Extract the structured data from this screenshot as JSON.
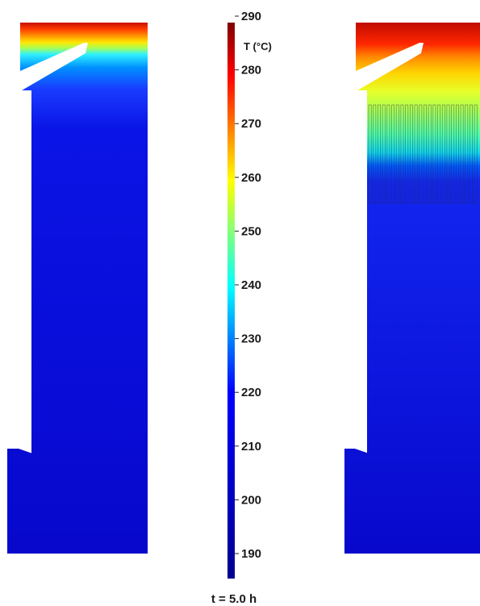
{
  "colorbar": {
    "unit_label": "T (°C)",
    "min": 185,
    "max": 290,
    "ticks": [
      290,
      280,
      270,
      260,
      250,
      240,
      230,
      220,
      210,
      200,
      190
    ],
    "colormap": [
      "#00008f",
      "#0000ff",
      "#00ffff",
      "#ffff00",
      "#ff0000",
      "#800000"
    ]
  },
  "time_label": "t = 5.0 h",
  "panels": {
    "left": {
      "name": "tank-without-fins"
    },
    "right": {
      "name": "tank-with-fins"
    }
  }
}
